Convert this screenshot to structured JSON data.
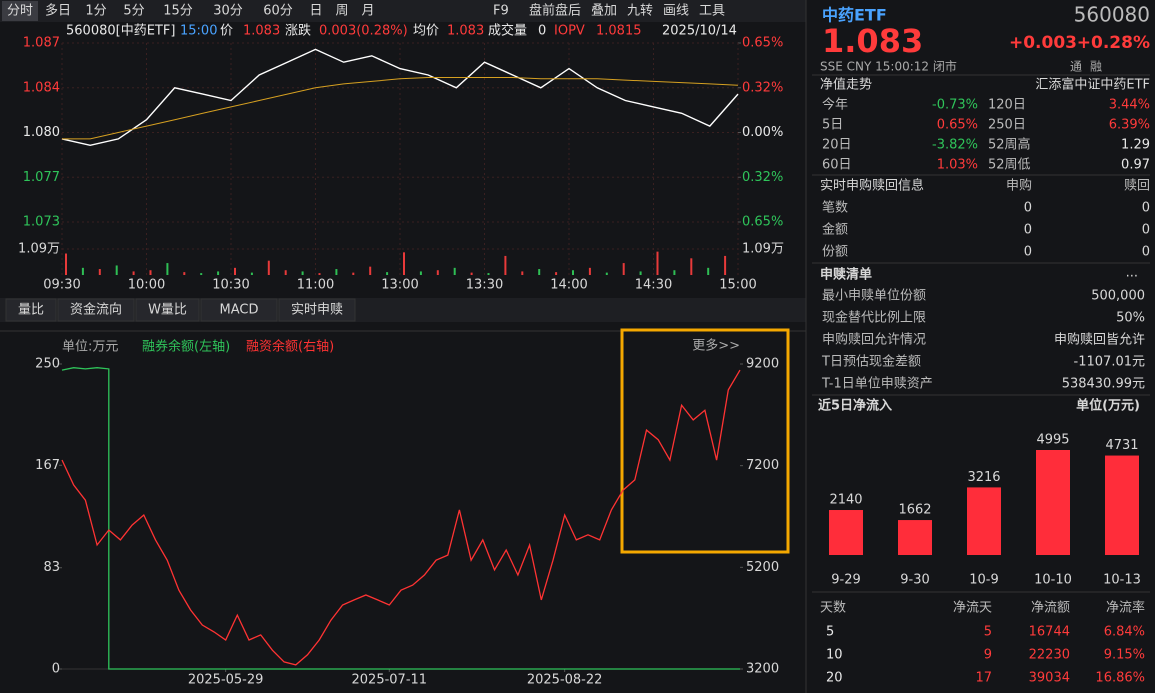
{
  "toolbar": {
    "tabs": [
      "分时",
      "多日",
      "1分",
      "5分",
      "15分",
      "30分",
      "60分",
      "日",
      "周",
      "月"
    ],
    "tools": [
      "F9",
      "盘前盘后",
      "叠加",
      "九转",
      "画线",
      "工具"
    ]
  },
  "info_bar": {
    "code": "560080[中药ETF]",
    "time": "15:00",
    "price_label": "价",
    "price": "1.083",
    "change_label": "涨跌",
    "change": "0.003(0.28%)",
    "avg_label": "均价",
    "avg": "1.083",
    "volume_label": "成交量",
    "volume": "0",
    "iopv_label": "IOPV",
    "iopv": "1.0815",
    "date": "2025/10/14"
  },
  "tabs": [
    "量比",
    "资金流向",
    "W量比",
    "MACD",
    "实时申赎"
  ],
  "margin_legend": {
    "unit": "单位:万元",
    "more": "更多>>"
  },
  "quote": {
    "name": "中药ETF",
    "code": "560080",
    "price": "1.083",
    "change": "+0.003",
    "change_pct": "+0.28%",
    "status": "SSE  CNY  15:00:12  闭市",
    "badges": [
      "通",
      "融"
    ]
  },
  "nav": {
    "title": "净值走势",
    "fund": "汇添富中证中药ETF",
    "rows": [
      [
        "今年",
        "-0.73%",
        "120日",
        "3.44%"
      ],
      [
        "5日",
        "0.65%",
        "250日",
        "6.39%"
      ],
      [
        "20日",
        "-3.82%",
        "52周高",
        "1.29"
      ],
      [
        "60日",
        "1.03%",
        "52周低",
        "0.97"
      ]
    ]
  },
  "realtime": {
    "title": "实时申购赎回信息",
    "headers": [
      "申购",
      "赎回"
    ],
    "rows": [
      [
        "笔数",
        "0",
        "0"
      ],
      [
        "金额",
        "0",
        "0"
      ],
      [
        "份额",
        "0",
        "0"
      ]
    ]
  },
  "list": {
    "title": "申赎清单",
    "more": "...",
    "rows": [
      [
        "最小申赎单位份额",
        "500,000"
      ],
      [
        "现金替代比例上限",
        "50%"
      ],
      [
        "申购赎回允许情况",
        "申购赎回皆允许"
      ],
      [
        "T日预估现金差额",
        "-1107.01元"
      ],
      [
        "T-1日单位申赎资产",
        "538430.99元"
      ]
    ]
  },
  "flow_table": {
    "headers": [
      "天数",
      "净流天",
      "净流额",
      "净流率"
    ],
    "rows": [
      [
        "5",
        "5",
        "16744",
        "6.84%"
      ],
      [
        "10",
        "9",
        "22230",
        "9.15%"
      ],
      [
        "20",
        "17",
        "39034",
        "16.86%"
      ]
    ]
  },
  "chart_data": [
    {
      "type": "line",
      "xlim": [
        0,
        240
      ],
      "x": [
        0,
        10,
        20,
        30,
        40,
        50,
        60,
        70,
        80,
        90,
        100,
        110,
        120,
        130,
        140,
        150,
        160,
        170,
        180,
        190,
        200,
        210,
        220,
        230,
        240
      ],
      "xticks": [
        {
          "value": 0,
          "label": "09:30"
        },
        {
          "value": 30,
          "label": "10:00"
        },
        {
          "value": 60,
          "label": "10:30"
        },
        {
          "value": 90,
          "label": "11:00"
        },
        {
          "value": 120,
          "label": "13:00"
        },
        {
          "value": 150,
          "label": "13:30"
        },
        {
          "value": 180,
          "label": "14:00"
        },
        {
          "value": 210,
          "label": "14:30"
        },
        {
          "value": 240,
          "label": "15:00"
        }
      ],
      "ylim": [
        1.073,
        1.087
      ],
      "yticks": [
        {
          "value": 1.087,
          "label": "1.087"
        },
        {
          "value": 1.0835,
          "label": "1.084"
        },
        {
          "value": 1.08,
          "label": "1.080"
        },
        {
          "value": 1.0765,
          "label": "1.077"
        },
        {
          "value": 1.073,
          "label": "1.073"
        }
      ],
      "y2lim": [
        -0.65,
        0.65
      ],
      "y2ticks": [
        {
          "value": 0.65,
          "label": "0.65%"
        },
        {
          "value": 0.325,
          "label": "0.32%"
        },
        {
          "value": 0,
          "label": "0.00%"
        },
        {
          "value": -0.325,
          "label": "0.32%"
        },
        {
          "value": -0.65,
          "label": "0.65%"
        }
      ],
      "grid": true,
      "series": [
        {
          "color": "#ffffff",
          "values": [
            1.0795,
            1.079,
            1.0795,
            1.081,
            1.0835,
            1.083,
            1.0825,
            1.0845,
            1.0855,
            1.0865,
            1.0855,
            1.086,
            1.085,
            1.0845,
            1.0835,
            1.0855,
            1.0845,
            1.0835,
            1.085,
            1.0835,
            1.0825,
            1.082,
            1.0815,
            1.0805,
            1.083
          ]
        },
        {
          "color": "#d6a021",
          "values": [
            1.0795,
            1.0795,
            1.08,
            1.0805,
            1.081,
            1.0815,
            1.082,
            1.0825,
            1.083,
            1.0835,
            1.0838,
            1.084,
            1.0842,
            1.0843,
            1.0843,
            1.0843,
            1.0843,
            1.0842,
            1.0842,
            1.0842,
            1.0841,
            1.084,
            1.0839,
            1.0838,
            1.0837
          ]
        }
      ]
    },
    {
      "type": "bar",
      "xlim": [
        0,
        240
      ],
      "x": [
        0,
        6,
        12,
        18,
        24,
        30,
        36,
        42,
        48,
        54,
        60,
        66,
        72,
        78,
        84,
        90,
        96,
        102,
        108,
        114,
        120,
        126,
        132,
        138,
        144,
        150,
        156,
        162,
        168,
        174,
        180,
        186,
        192,
        198,
        204,
        210,
        216,
        222,
        228,
        234
      ],
      "values": [
        9000,
        3000,
        2500,
        4000,
        1500,
        2000,
        5000,
        1200,
        800,
        1500,
        3000,
        1000,
        6000,
        2000,
        1500,
        800,
        2500,
        1000,
        3500,
        1200,
        9500,
        1500,
        2000,
        3000,
        1000,
        800,
        8000,
        1500,
        2500,
        1200,
        2000,
        3000,
        1000,
        5000,
        1500,
        9800,
        2000,
        7000,
        3000,
        8000
      ],
      "colors": [
        "#e83a3a",
        "#2fbf55",
        "#e83a3a",
        "#2fbf55",
        "#e83a3a",
        "#e83a3a",
        "#2fbf55",
        "#e83a3a",
        "#2fbf55",
        "#2fbf55",
        "#e83a3a",
        "#2fbf55",
        "#e83a3a",
        "#e83a3a",
        "#2fbf55",
        "#e83a3a",
        "#2fbf55",
        "#e83a3a",
        "#e83a3a",
        "#2fbf55",
        "#e83a3a",
        "#2fbf55",
        "#e83a3a",
        "#2fbf55",
        "#e83a3a",
        "#2fbf55",
        "#e83a3a",
        "#e83a3a",
        "#2fbf55",
        "#e83a3a",
        "#2fbf55",
        "#e83a3a",
        "#2fbf55",
        "#e83a3a",
        "#2fbf55",
        "#e83a3a",
        "#2fbf55",
        "#e83a3a",
        "#2fbf55",
        "#e83a3a"
      ],
      "ylim": [
        0,
        10900
      ],
      "yticks": [
        {
          "value": 10900,
          "label": "1.09万"
        }
      ]
    },
    {
      "type": "line",
      "xlim": [
        0,
        58
      ],
      "xticks": [
        {
          "value": 14,
          "label": "2025-05-29"
        },
        {
          "value": 28,
          "label": "2025-07-11"
        },
        {
          "value": 43,
          "label": "2025-08-22"
        }
      ],
      "ylim": [
        0,
        250
      ],
      "yticks": [
        0,
        83,
        167,
        250
      ],
      "y2lim": [
        3200,
        9200
      ],
      "y2ticks": [
        3200,
        5200,
        7200,
        9200
      ],
      "series": [
        {
          "name": "融券余额(左轴)",
          "color": "#2fc45a",
          "x": [
            0,
            1,
            2,
            3,
            4,
            4,
            58
          ],
          "values": [
            245,
            247,
            246,
            247,
            246,
            0,
            0
          ]
        },
        {
          "name": "融资余额(右轴)",
          "color": "#ff3333",
          "axis": "y2",
          "x": [
            0,
            1,
            2,
            3,
            4,
            5,
            6,
            7,
            8,
            9,
            10,
            11,
            12,
            13,
            14,
            15,
            16,
            17,
            18,
            19,
            20,
            21,
            22,
            23,
            24,
            25,
            26,
            27,
            28,
            29,
            30,
            31,
            32,
            33,
            34,
            35,
            36,
            37,
            38,
            39,
            40,
            41,
            42,
            43,
            44,
            45,
            46,
            47,
            48,
            49,
            50,
            51,
            52,
            53,
            54,
            55,
            56,
            57,
            58
          ],
          "values": [
            7311,
            6820,
            6520,
            5640,
            5935,
            5740,
            6030,
            6230,
            5740,
            5340,
            4750,
            4360,
            4065,
            3930,
            3770,
            4260,
            3770,
            3870,
            3570,
            3340,
            3280,
            3480,
            3770,
            4160,
            4460,
            4560,
            4655,
            4560,
            4460,
            4750,
            4850,
            5050,
            5340,
            5440,
            6330,
            5340,
            5740,
            5150,
            5540,
            5050,
            5640,
            4560,
            5340,
            6230,
            5740,
            5840,
            5740,
            6330,
            6720,
            6920,
            7900,
            7710,
            7310,
            8390,
            8100,
            8290,
            7310,
            8690,
            9080
          ]
        }
      ]
    },
    {
      "type": "bar",
      "title": "近5日净流入",
      "unit": "单位(万元)",
      "categories": [
        "9-29",
        "9-30",
        "10-9",
        "10-10",
        "10-13"
      ],
      "values": [
        2140,
        1662,
        3216,
        4995,
        4731
      ],
      "color": "#ff2d3a"
    }
  ]
}
